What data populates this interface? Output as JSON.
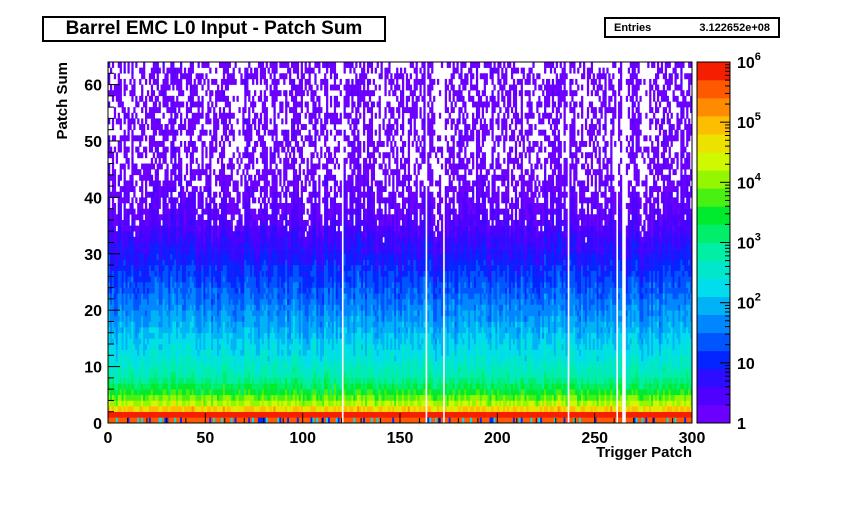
{
  "chart_data": {
    "type": "heatmap",
    "title": "Barrel EMC L0 Input - Patch Sum",
    "xlabel": "Trigger Patch",
    "ylabel": "Patch Sum",
    "xlim": [
      0,
      300
    ],
    "ylim": [
      0,
      64
    ],
    "x_ticks": [
      "0",
      "50",
      "100",
      "150",
      "200",
      "250",
      "300"
    ],
    "y_ticks": [
      "0",
      "10",
      "20",
      "30",
      "40",
      "50",
      "60"
    ],
    "z_scale": "log",
    "z_range": [
      1,
      1000000
    ],
    "z_ticks": [
      {
        "base": "1",
        "exp": ""
      },
      {
        "base": "10",
        "exp": ""
      },
      {
        "base": "10",
        "exp": "2"
      },
      {
        "base": "10",
        "exp": "3"
      },
      {
        "base": "10",
        "exp": "4"
      },
      {
        "base": "10",
        "exp": "5"
      },
      {
        "base": "10",
        "exp": "6"
      }
    ],
    "stats": {
      "entries_label": "Entries",
      "entries_value": "3.122652e+08"
    },
    "profile_approx": [
      {
        "patch_sum": 0,
        "counts": 300000
      },
      {
        "patch_sum": 1,
        "counts": 1000000
      },
      {
        "patch_sum": 2,
        "counts": 60000
      },
      {
        "patch_sum": 3,
        "counts": 15000
      },
      {
        "patch_sum": 5,
        "counts": 3000
      },
      {
        "patch_sum": 8,
        "counts": 600
      },
      {
        "patch_sum": 12,
        "counts": 200
      },
      {
        "patch_sum": 18,
        "counts": 60
      },
      {
        "patch_sum": 24,
        "counts": 20
      },
      {
        "patch_sum": 30,
        "counts": 6
      },
      {
        "patch_sum": 36,
        "counts": 2
      },
      {
        "patch_sum": 45,
        "counts": 1
      },
      {
        "patch_sum": 62,
        "counts": 1
      }
    ],
    "empty_trigger_patches": [
      120,
      163,
      172,
      236,
      261,
      264,
      265
    ]
  }
}
